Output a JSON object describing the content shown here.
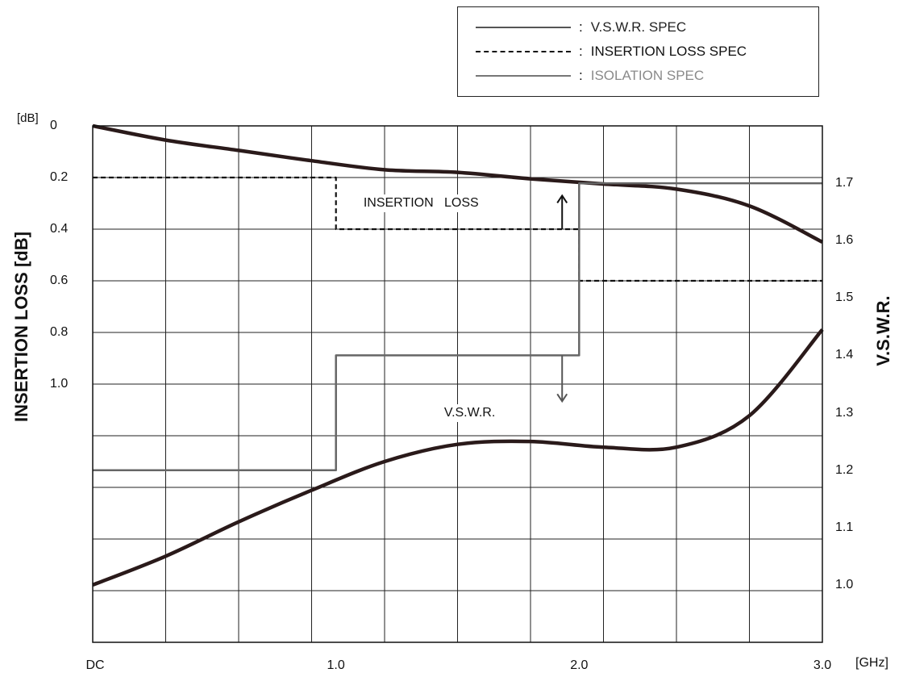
{
  "legend": [
    {
      "label": "V.S.W.R. SPEC",
      "color": "#555555",
      "dash": "none",
      "text_color": "#222222"
    },
    {
      "label": "INSERTION LOSS SPEC",
      "color": "#111111",
      "dash": "dashed",
      "text_color": "#111111"
    },
    {
      "label": "ISOLATION SPEC",
      "color": "#777777",
      "dash": "none",
      "text_color": "#8a8a8a"
    }
  ],
  "legend_sep": ":",
  "chart_data": {
    "type": "line",
    "x_unit_label": "[GHz]",
    "x_tick_labels": [
      "DC",
      "1.0",
      "2.0",
      "3.0"
    ],
    "x_ticks": [
      0,
      1,
      2,
      3
    ],
    "xlim": [
      0,
      3
    ],
    "x_grid_step": 0.3,
    "left_axis": {
      "title": "INSERTION LOSS [dB]",
      "unit_label": "[dB]",
      "ylim": [
        0,
        2
      ],
      "inverted": true,
      "ticks": [
        0,
        0.2,
        0.4,
        0.6,
        0.8,
        1.0
      ],
      "tick_labels": [
        "0",
        "0.2",
        "0.4",
        "0.6",
        "0.8",
        "1.0"
      ],
      "grid_step": 0.2
    },
    "right_axis": {
      "title": "V.S.W.R.",
      "ylim": [
        0.9,
        1.8
      ],
      "ticks": [
        1.0,
        1.1,
        1.2,
        1.3,
        1.4,
        1.5,
        1.6,
        1.7
      ],
      "tick_labels": [
        "1.0",
        "1.1",
        "1.2",
        "1.3",
        "1.4",
        "1.5",
        "1.6",
        "1.7"
      ]
    },
    "series": [
      {
        "axis": "left",
        "color": "#2a1a1a",
        "style": "solid",
        "x": [
          0,
          0.3,
          0.6,
          0.9,
          1.2,
          1.5,
          1.8,
          2.1,
          2.4,
          2.7,
          3.0
        ],
        "y": [
          0,
          0.055,
          0.095,
          0.135,
          0.17,
          0.18,
          0.205,
          0.225,
          0.245,
          0.31,
          0.45
        ]
      },
      {
        "axis": "right",
        "color": "#2a1a1a",
        "style": "solid",
        "x": [
          0,
          0.3,
          0.6,
          0.9,
          1.2,
          1.5,
          1.8,
          2.1,
          2.4,
          2.7,
          3.0
        ],
        "y": [
          1.0,
          1.05,
          1.11,
          1.165,
          1.215,
          1.245,
          1.25,
          1.24,
          1.24,
          1.295,
          1.445
        ]
      },
      {
        "axis": "left",
        "color": "#111111",
        "style": "dashed",
        "x": [
          0,
          1,
          1,
          2,
          2,
          3
        ],
        "y": [
          0.2,
          0.2,
          0.4,
          0.4,
          0.6,
          0.6
        ]
      },
      {
        "axis": "right",
        "color": "#666666",
        "style": "solid",
        "x": [
          0,
          1,
          1,
          2,
          2,
          3
        ],
        "y": [
          1.2,
          1.2,
          1.4,
          1.4,
          1.7,
          1.7
        ]
      }
    ],
    "annotations": [
      {
        "text": "INSERTION   LOSS",
        "x": 1.35,
        "y_left": 0.3
      },
      {
        "text": "V.S.W.R.",
        "x": 1.55,
        "y_right": 1.3
      }
    ],
    "arrows": [
      {
        "x": 1.93,
        "from_left": 0.4,
        "to_left": 0.27,
        "color": "#111111"
      },
      {
        "x": 1.93,
        "from_right": 1.4,
        "to_right": 1.32,
        "color": "#555555"
      }
    ]
  }
}
